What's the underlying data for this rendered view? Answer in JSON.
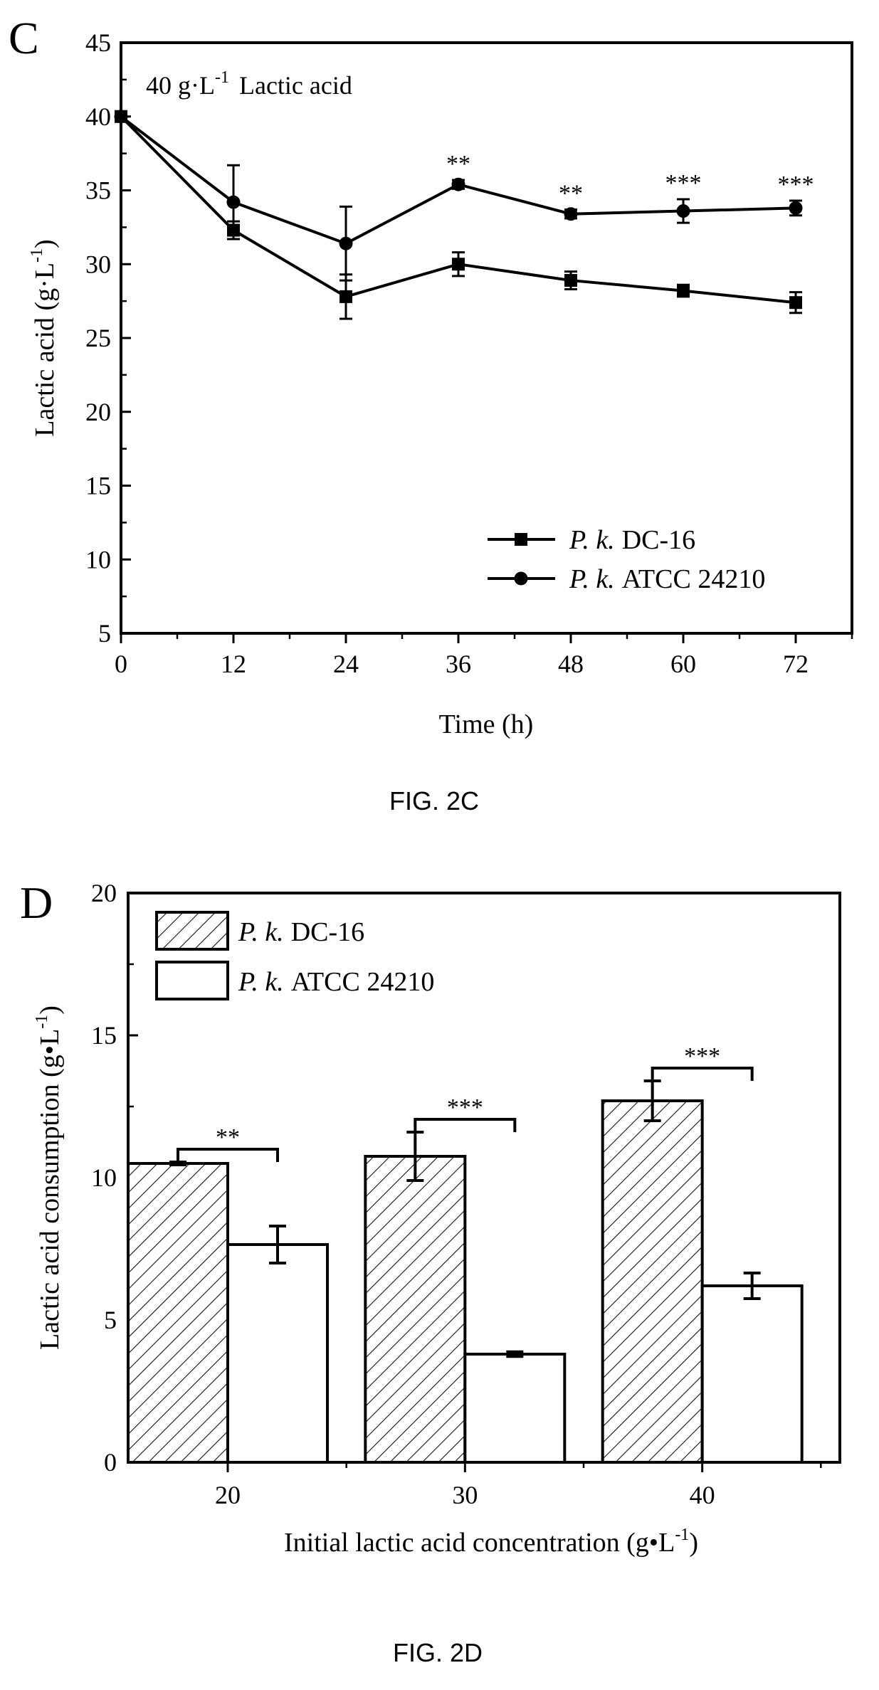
{
  "figure_c": {
    "caption": "FIG. 2C",
    "panel_letter": "C",
    "inner_title_prefix": "40 g·L",
    "inner_title_exp": "-1",
    "inner_title_suffix": "Lactic acid",
    "ylabel_main": "Lactic acid (g·L",
    "ylabel_exp": "-1",
    "ylabel_close": ")",
    "xlabel": "Time (h)"
  },
  "figure_d": {
    "caption": "FIG. 2D",
    "panel_letter": "D",
    "ylabel_main": "Lactic acid consumption  (g•L",
    "ylabel_exp": "-1",
    "ylabel_close": ")",
    "xlabel_main": "Initial lactic acid concentration (g•L",
    "xlabel_exp": "-1",
    "xlabel_close": ")"
  },
  "chart_data": [
    {
      "type": "line",
      "panel": "C",
      "title": "40 g·L-1 Lactic acid",
      "xlabel": "Time (h)",
      "ylabel": "Lactic acid (g·L-1)",
      "x": [
        0,
        12,
        24,
        36,
        48,
        60,
        72
      ],
      "xticks": [
        "0",
        "12",
        "24",
        "36",
        "48",
        "60",
        "72"
      ],
      "yticks": [
        "5",
        "10",
        "15",
        "20",
        "25",
        "30",
        "35",
        "40",
        "45"
      ],
      "xlim": [
        0,
        78
      ],
      "ylim": [
        5,
        45
      ],
      "legend_position": "bottom-right",
      "grid": false,
      "series": [
        {
          "name_italic": "P. k.",
          "name_rest": "DC-16",
          "marker": "square",
          "values": [
            40.0,
            32.3,
            27.8,
            30.0,
            28.9,
            28.2,
            27.4
          ],
          "errors": [
            0.0,
            0.6,
            1.5,
            0.8,
            0.6,
            0.4,
            0.7
          ]
        },
        {
          "name_italic": "P. k.",
          "name_rest": "ATCC 24210",
          "marker": "circle",
          "values": [
            40.0,
            34.2,
            31.4,
            35.4,
            33.4,
            33.6,
            33.8
          ],
          "errors": [
            0.0,
            2.5,
            2.5,
            0.3,
            0.3,
            0.8,
            0.5
          ]
        }
      ],
      "annotations": [
        {
          "x": 36,
          "text": "**"
        },
        {
          "x": 48,
          "text": "**"
        },
        {
          "x": 60,
          "text": "***"
        },
        {
          "x": 72,
          "text": "***"
        }
      ]
    },
    {
      "type": "bar",
      "panel": "D",
      "xlabel": "Initial lactic acid concentration (g•L-1)",
      "ylabel": "Lactic acid consumption (g•L-1)",
      "categories": [
        "20",
        "30",
        "40"
      ],
      "yticks": [
        "0",
        "5",
        "10",
        "15",
        "20"
      ],
      "ylim": [
        0,
        20
      ],
      "legend_position": "top-left",
      "grid": false,
      "series": [
        {
          "name_italic": "P. k.",
          "name_rest": "DC-16",
          "fill": "hatched",
          "values": [
            10.5,
            10.75,
            12.7
          ],
          "errors": [
            0.05,
            0.85,
            0.7
          ]
        },
        {
          "name_italic": "P. k.",
          "name_rest": "ATCC 24210",
          "fill": "white",
          "values": [
            7.65,
            3.8,
            6.2
          ],
          "errors": [
            0.65,
            0.08,
            0.45
          ]
        }
      ],
      "annotations": [
        {
          "category": "20",
          "text": "**"
        },
        {
          "category": "30",
          "text": "***"
        },
        {
          "category": "40",
          "text": "***"
        }
      ]
    }
  ]
}
